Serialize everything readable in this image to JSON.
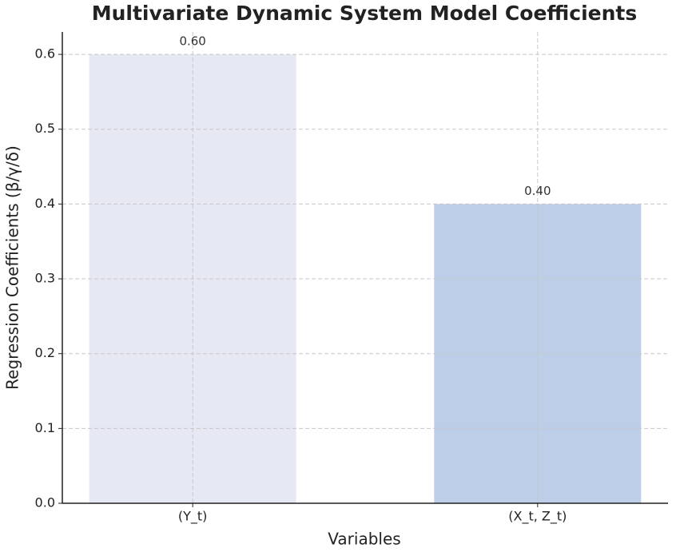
{
  "chart_data": {
    "type": "bar",
    "title": "Multivariate Dynamic System Model Coefficients",
    "x_label": "Variables",
    "y_label": "Regression Coefficients (β/γ/δ)",
    "categories": [
      "(Y_t)",
      "(X_t, Z_t)"
    ],
    "values": [
      0.6,
      0.4
    ],
    "value_labels": [
      "0.60",
      "0.40"
    ],
    "colors": [
      "#e6e8f4",
      "#bccee8"
    ],
    "ylim": [
      0,
      0.63
    ],
    "yticks": [
      {
        "value": 0,
        "label": "0.0"
      },
      0.1,
      0.2,
      0.3,
      0.4,
      0.5,
      0.6
    ],
    "grid": true
  }
}
